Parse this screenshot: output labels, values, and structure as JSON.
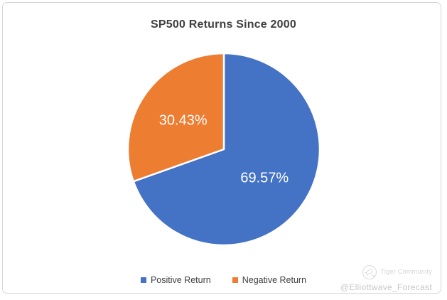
{
  "chart_data": {
    "type": "pie",
    "title": "SP500 Returns Since 2000",
    "slices": [
      {
        "label": "Positive Return",
        "value": 69.57,
        "display": "69.57%",
        "color": "#4472C4"
      },
      {
        "label": "Negative Return",
        "value": 30.43,
        "display": "30.43%",
        "color": "#ED7D31"
      }
    ],
    "start_angle_deg": 0,
    "direction": "clockwise",
    "legend_position": "bottom",
    "data_labels": "percent-inside",
    "slice_border_color": "#ffffff"
  },
  "watermark": {
    "community": "Tiger Community",
    "handle": "@Elliottwave_Forecast",
    "logo": "tiger-doodle-icon",
    "color": "#cccccc"
  }
}
